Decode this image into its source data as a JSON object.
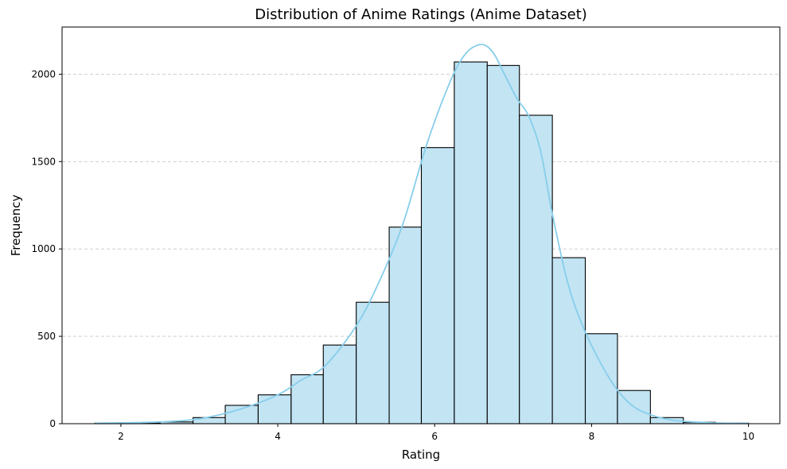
{
  "chart_data": {
    "type": "bar",
    "title": "Distribution of Anime Ratings (Anime Dataset)",
    "xlabel": "Rating",
    "ylabel": "Frequency",
    "xlim": [
      1.25,
      10.4
    ],
    "ylim": [
      0,
      2270
    ],
    "xticks": [
      "2",
      "4",
      "6",
      "8",
      "10"
    ],
    "yticks": [
      "0",
      "500",
      "1000",
      "1500",
      "2000"
    ],
    "grid": "y-dashed",
    "bins": [
      {
        "start": 1.67,
        "end": 2.085,
        "count": 4
      },
      {
        "start": 2.085,
        "end": 2.5,
        "count": 5
      },
      {
        "start": 2.5,
        "end": 2.92,
        "count": 10
      },
      {
        "start": 2.92,
        "end": 3.33,
        "count": 35
      },
      {
        "start": 3.33,
        "end": 3.75,
        "count": 105
      },
      {
        "start": 3.75,
        "end": 4.17,
        "count": 165
      },
      {
        "start": 4.17,
        "end": 4.58,
        "count": 280
      },
      {
        "start": 4.58,
        "end": 5.0,
        "count": 450
      },
      {
        "start": 5.0,
        "end": 5.42,
        "count": 695
      },
      {
        "start": 5.42,
        "end": 5.83,
        "count": 1125
      },
      {
        "start": 5.83,
        "end": 6.25,
        "count": 1580
      },
      {
        "start": 6.25,
        "end": 6.67,
        "count": 2070
      },
      {
        "start": 6.67,
        "end": 7.08,
        "count": 2050
      },
      {
        "start": 7.08,
        "end": 7.5,
        "count": 1765
      },
      {
        "start": 7.5,
        "end": 7.92,
        "count": 950
      },
      {
        "start": 7.92,
        "end": 8.33,
        "count": 515
      },
      {
        "start": 8.33,
        "end": 8.75,
        "count": 190
      },
      {
        "start": 8.75,
        "end": 9.17,
        "count": 35
      },
      {
        "start": 9.17,
        "end": 9.58,
        "count": 8
      },
      {
        "start": 9.58,
        "end": 10.0,
        "count": 3
      }
    ],
    "kde": {
      "x": [
        1.67,
        2.0,
        2.5,
        3.0,
        3.5,
        4.0,
        4.3,
        4.6,
        5.0,
        5.3,
        5.6,
        5.9,
        6.2,
        6.4,
        6.6,
        6.75,
        6.9,
        7.05,
        7.2,
        7.35,
        7.5,
        7.7,
        7.9,
        8.1,
        8.3,
        8.5,
        8.7,
        9.0,
        9.3,
        9.6,
        10.0
      ],
      "y": [
        3,
        5,
        10,
        28,
        80,
        165,
        250,
        330,
        560,
        820,
        1150,
        1600,
        1960,
        2120,
        2170,
        2120,
        1990,
        1860,
        1760,
        1560,
        1200,
        800,
        545,
        360,
        210,
        110,
        60,
        22,
        10,
        4,
        2
      ]
    },
    "colors": {
      "bar_fill": "#c2e4f3",
      "bar_edge": "#000000",
      "kde_line": "#87ceeb",
      "grid": "#c8c8c8"
    }
  }
}
